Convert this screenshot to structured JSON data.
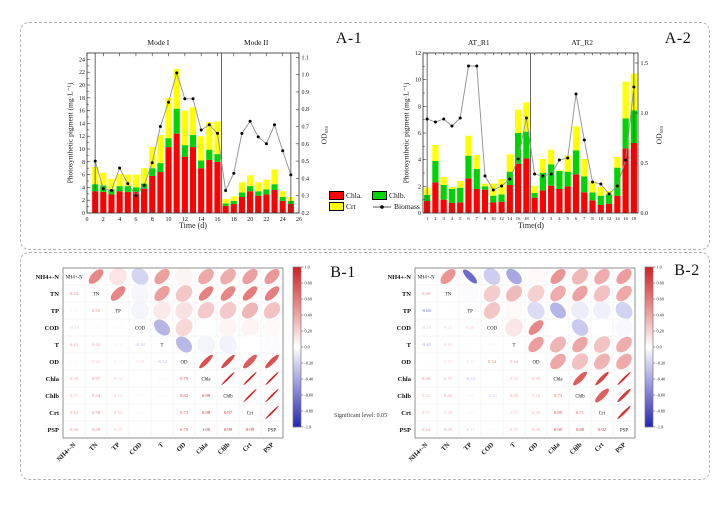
{
  "figure": {
    "panel_labels": {
      "a1": "A-1",
      "a2": "A-2",
      "b1": "B-1",
      "b2": "B-2"
    },
    "significance_note": "Significant level: 0.05"
  },
  "legend": {
    "chla": "Chla.",
    "chlb": "Chlb.",
    "crt": "Crt",
    "biomass": "Biomass"
  },
  "colors": {
    "chla": "#ff0000",
    "chlb": "#00d400",
    "crt": "#ffff00",
    "line": "#8f8f8f",
    "dot": "#000000",
    "corr_pos": "#d32020",
    "corr_neg": "#2424b8"
  },
  "chart_data": [
    {
      "type": "bar",
      "panel": "A-1",
      "group_labels": [
        "Mode I",
        "Mode II"
      ],
      "xlabel": "Time (d)",
      "ylabel_left": "Photosynthetic pigment (mg·L⁻¹)",
      "ylabel_right": "OD₆₈₀",
      "x": [
        1,
        2,
        3,
        4,
        5,
        6,
        7,
        8,
        9,
        10,
        11,
        12,
        13,
        14,
        15,
        16,
        17,
        18,
        19,
        20,
        21,
        22,
        23,
        24,
        25
      ],
      "xlim": [
        0,
        26
      ],
      "x_ticks": [
        0,
        2,
        4,
        6,
        8,
        10,
        12,
        14,
        16,
        18,
        20,
        22,
        24,
        26
      ],
      "ylim_left": [
        0,
        25
      ],
      "yticks_left": [
        0,
        2,
        4,
        6,
        8,
        10,
        12,
        14,
        16,
        18,
        20,
        22,
        24
      ],
      "ylim_right": [
        0.2,
        1.125
      ],
      "yticks_right": [
        0.2,
        0.3,
        0.4,
        0.5,
        0.6,
        0.7,
        0.8,
        0.9,
        1.0,
        1.1
      ],
      "separators": [
        1,
        16.5,
        25
      ],
      "series": [
        {
          "name": "Chla",
          "values": [
            3.4,
            3.3,
            2.9,
            3.4,
            3.3,
            3.3,
            3.8,
            5.8,
            6.4,
            10.3,
            12.4,
            8.8,
            10.3,
            7.0,
            8.3,
            8.0,
            1.1,
            1.4,
            2.5,
            3.4,
            2.7,
            2.9,
            3.6,
            1.9,
            1.4
          ]
        },
        {
          "name": "Chlb",
          "values": [
            1.1,
            1.0,
            0.8,
            0.8,
            0.9,
            0.7,
            0.8,
            1.2,
            1.4,
            1.4,
            3.9,
            1.8,
            1.9,
            1.2,
            1.6,
            1.2,
            0.4,
            0.5,
            0.7,
            0.8,
            0.7,
            0.8,
            0.9,
            0.6,
            0.5
          ]
        },
        {
          "name": "Crt",
          "values": [
            2.7,
            2.0,
            1.6,
            1.9,
            1.8,
            2.0,
            2.4,
            3.3,
            4.4,
            6.3,
            6.2,
            5.4,
            4.3,
            3.8,
            4.3,
            5.1,
            0.7,
            0.7,
            1.6,
            1.7,
            1.4,
            1.5,
            2.3,
            0.9,
            0.6
          ]
        },
        {
          "name": "Biomass",
          "axis": "right",
          "values": [
            0.5,
            0.34,
            0.33,
            0.46,
            0.37,
            0.3,
            0.36,
            0.49,
            0.7,
            0.84,
            1.01,
            0.86,
            0.86,
            0.68,
            0.71,
            0.66,
            0.33,
            0.43,
            0.66,
            0.73,
            0.64,
            0.6,
            0.71,
            0.56,
            0.42
          ]
        }
      ]
    },
    {
      "type": "bar",
      "panel": "A-2",
      "group_labels": [
        "AT_R1",
        "AT_R2"
      ],
      "xlabel": "Time(d)",
      "ylabel_left": "Photosynthetic pigment (mg·L⁻¹)",
      "ylabel_right": "OD₆₈₀",
      "categories": [
        "1",
        "2",
        "3",
        "4",
        "5",
        "6",
        "7",
        "8",
        "10",
        "12",
        "14",
        "16",
        "18",
        "1",
        "2",
        "3",
        "4",
        "5",
        "6",
        "7",
        "8",
        "10",
        "12",
        "14",
        "16",
        "18"
      ],
      "ylim_left": [
        0,
        12
      ],
      "yticks_left": [
        0,
        2,
        4,
        6,
        8,
        10,
        12
      ],
      "ylim_right": [
        0,
        1.6
      ],
      "yticks_right": [
        0.0,
        0.5,
        1.0,
        1.5
      ],
      "separators": [
        0.5,
        13,
        25.5
      ],
      "series": [
        {
          "name": "Chla",
          "values": [
            0.9,
            2.3,
            1.0,
            0.75,
            0.8,
            2.6,
            1.8,
            1.75,
            0.8,
            0.85,
            2.1,
            3.7,
            4.1,
            1.15,
            1.7,
            2.05,
            1.8,
            2.0,
            2.9,
            1.55,
            0.95,
            0.6,
            0.7,
            1.3,
            4.85,
            5.25
          ]
        },
        {
          "name": "Chlb",
          "values": [
            0.45,
            1.6,
            1.1,
            1.05,
            1.1,
            1.7,
            1.5,
            0.25,
            0.5,
            0.55,
            1.0,
            2.3,
            2.0,
            0.35,
            1.3,
            1.6,
            1.35,
            1.1,
            1.8,
            1.2,
            0.6,
            0.7,
            0.7,
            2.1,
            2.25,
            2.45
          ]
        },
        {
          "name": "Crt",
          "values": [
            0.55,
            1.2,
            0.6,
            0.15,
            0.5,
            1.5,
            1.05,
            0.2,
            0.9,
            1.15,
            1.3,
            1.75,
            2.2,
            0.5,
            1.05,
            1.1,
            0.05,
            1.2,
            1.8,
            1.3,
            0.85,
            0.65,
            0.25,
            0.8,
            2.75,
            2.75
          ]
        },
        {
          "name": "Biomass",
          "axis": "right",
          "values": [
            0.94,
            0.91,
            0.94,
            0.87,
            0.95,
            1.47,
            1.47,
            0.37,
            0.23,
            0.27,
            0.34,
            0.54,
            0.95,
            0.39,
            0.37,
            0.39,
            0.53,
            0.55,
            1.19,
            0.73,
            0.31,
            0.29,
            0.19,
            0.27,
            0.53,
            1.26
          ]
        }
      ]
    },
    {
      "type": "heatmap",
      "subtype": "correlation-matrix",
      "panel": "B-1",
      "variables": [
        "NH4+-N",
        "TN",
        "TP",
        "COD",
        "T",
        "OD",
        "Chla",
        "Chlb",
        "Crt",
        "PSP"
      ],
      "lower_triangle": [
        [],
        [
          0.54
        ],
        [
          0.12,
          0.55
        ],
        [
          -0.19,
          -0.04,
          -0.05
        ],
        [
          0.43,
          0.44,
          0.1,
          -0.34
        ],
        [
          0.05,
          0.25,
          0.13,
          0.18,
          -0.32
        ],
        [
          0.39,
          0.57,
          0.24,
          0.0,
          -0.05,
          0.79
        ],
        [
          0.37,
          0.54,
          0.24,
          0.05,
          -0.06,
          0.82,
          0.99
        ],
        [
          0.43,
          0.59,
          0.33,
          0.05,
          0.0,
          0.73,
          0.98,
          0.97
        ],
        [
          0.46,
          0.58,
          0.27,
          0.03,
          -0.02,
          0.78,
          1.0,
          0.99,
          0.99
        ]
      ],
      "colorbar_ticks": [
        "1.0",
        "0.80",
        "0.60",
        "0.40",
        "0.20",
        "0.0",
        "-0.20",
        "-0.40",
        "-0.60",
        "-0.80",
        "-1.0"
      ]
    },
    {
      "type": "heatmap",
      "subtype": "correlation-matrix",
      "panel": "B-2",
      "variables": [
        "NH4+-N",
        "TN",
        "TP",
        "COD",
        "T",
        "OD",
        "Chla",
        "Chlb",
        "Crt",
        "PSP"
      ],
      "lower_triangle": [
        [],
        [
          0.48
        ],
        [
          -0.68,
          -0.02
        ],
        [
          -0.23,
          0.23,
          0.26
        ],
        [
          -0.4,
          0.31,
          0.03,
          0.11
        ],
        [
          0.03,
          0.21,
          -0.16,
          0.54,
          0.44
        ],
        [
          0.48,
          0.37,
          -0.34,
          0.0,
          0.33,
          0.39
        ],
        [
          0.32,
          0.42,
          -0.08,
          -0.24,
          0.4,
          0.28,
          0.73
        ],
        [
          0.37,
          0.28,
          -0.07,
          0.0,
          0.27,
          0.34,
          0.85,
          0.71
        ],
        [
          0.44,
          0.39,
          -0.21,
          -0.03,
          0.37,
          0.38,
          0.95,
          0.88,
          0.92
        ]
      ],
      "colorbar_ticks": [
        "1.0",
        "0.80",
        "0.60",
        "0.40",
        "0.20",
        "0.0",
        "-0.20",
        "-0.40",
        "-0.60",
        "-0.80",
        "-1.0"
      ]
    }
  ]
}
